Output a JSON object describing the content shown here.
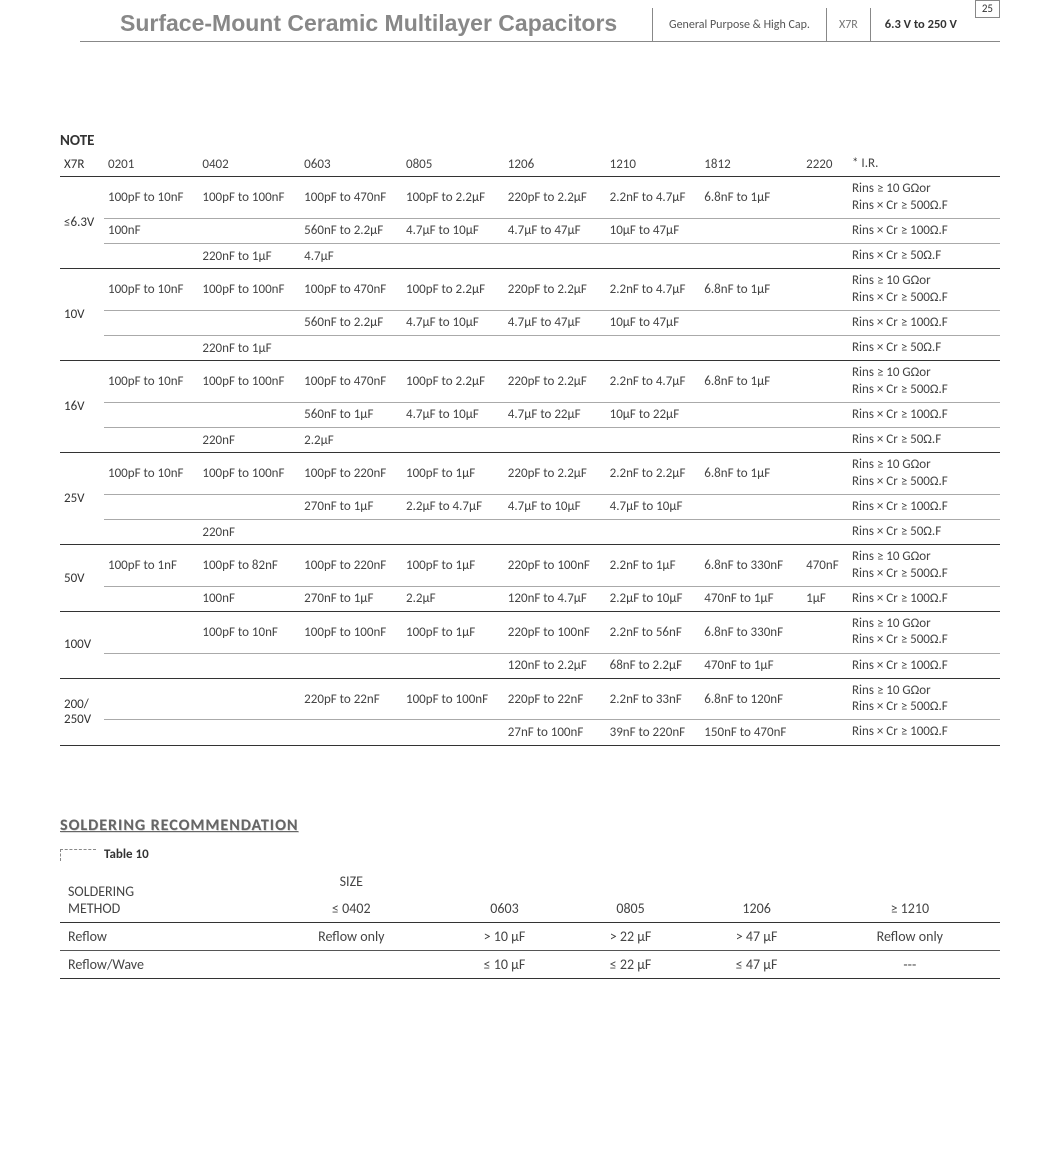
{
  "header": {
    "title": "Surface-Mount Ceramic Multilayer Capacitors",
    "subtitle": "General Purpose & High Cap.",
    "code": "X7R",
    "voltage": "6.3 V to 250 V",
    "page_number": "25"
  },
  "note": {
    "label": "NOTE",
    "corner": "X7R",
    "columns": [
      "0201",
      "0402",
      "0603",
      "0805",
      "1206",
      "1210",
      "1812",
      "2220",
      "* I.R."
    ],
    "groups": [
      {
        "voltage": "≤6.3V",
        "rows": [
          {
            "c": [
              "100pF to 10nF",
              "100pF to 100nF",
              "100pF to 470nF",
              "100pF to 2.2µF",
              "220pF to 2.2µF",
              "2.2nF to 4.7µF",
              "6.8nF to 1µF",
              ""
            ],
            "ir": "Rins ≥ 10 GΩor\nRins × Cr ≥ 500Ω.F",
            "line": "light"
          },
          {
            "c": [
              "100nF",
              "",
              "560nF to 2.2µF",
              "4.7µF to 10µF",
              "4.7µF to 47µF",
              "10µF to 47µF",
              "",
              ""
            ],
            "ir": "Rins × Cr ≥ 100Ω.F",
            "line": "light"
          },
          {
            "c": [
              "",
              "220nF to 1µF",
              "4.7µF",
              "",
              "",
              "",
              "",
              ""
            ],
            "ir": "Rins × Cr ≥ 50Ω.F",
            "line": "dark"
          }
        ]
      },
      {
        "voltage": "10V",
        "rows": [
          {
            "c": [
              "100pF to 10nF",
              "100pF to 100nF",
              "100pF to 470nF",
              "100pF to 2.2µF",
              "220pF to 2.2µF",
              "2.2nF to 4.7µF",
              "6.8nF to 1µF",
              ""
            ],
            "ir": "Rins ≥ 10 GΩor\nRins × Cr ≥ 500Ω.F",
            "line": "light"
          },
          {
            "c": [
              "",
              "",
              "560nF to 2.2µF",
              "4.7µF to 10µF",
              "4.7µF to 47µF",
              "10µF to 47µF",
              "",
              ""
            ],
            "ir": "Rins × Cr ≥ 100Ω.F",
            "line": "light"
          },
          {
            "c": [
              "",
              "220nF to 1µF",
              "",
              "",
              "",
              "",
              "",
              ""
            ],
            "ir": "Rins × Cr ≥ 50Ω.F",
            "line": "dark"
          }
        ]
      },
      {
        "voltage": "16V",
        "rows": [
          {
            "c": [
              "100pF to 10nF",
              "100pF to 100nF",
              "100pF to 470nF",
              "100pF to 2.2µF",
              "220pF to 2.2µF",
              "2.2nF to 4.7µF",
              "6.8nF to 1µF",
              ""
            ],
            "ir": "Rins ≥ 10 GΩor\nRins × Cr ≥ 500Ω.F",
            "line": "light"
          },
          {
            "c": [
              "",
              "",
              "560nF to 1µF",
              "4.7µF to 10µF",
              "4.7µF to 22µF",
              "10µF to 22µF",
              "",
              ""
            ],
            "ir": "Rins × Cr ≥ 100Ω.F",
            "line": "light"
          },
          {
            "c": [
              "",
              "220nF",
              "2.2µF",
              "",
              "",
              "",
              "",
              ""
            ],
            "ir": "Rins × Cr ≥ 50Ω.F",
            "line": "dark"
          }
        ]
      },
      {
        "voltage": "25V",
        "rows": [
          {
            "c": [
              "100pF to 10nF",
              "100pF to 100nF",
              "100pF to 220nF",
              "100pF to 1µF",
              "220pF to 2.2µF",
              "2.2nF to 2.2µF",
              "6.8nF to 1µF",
              ""
            ],
            "ir": "Rins ≥ 10 GΩor\nRins × Cr ≥ 500Ω.F",
            "line": "light"
          },
          {
            "c": [
              "",
              "",
              "270nF to 1µF",
              "2.2µF to 4.7µF",
              "4.7µF to 10µF",
              "4.7µF to 10µF",
              "",
              ""
            ],
            "ir": "Rins × Cr ≥ 100Ω.F",
            "line": "light"
          },
          {
            "c": [
              "",
              "220nF",
              "",
              "",
              "",
              "",
              "",
              ""
            ],
            "ir": "Rins × Cr ≥ 50Ω.F",
            "line": "dark"
          }
        ]
      },
      {
        "voltage": "50V",
        "rows": [
          {
            "c": [
              "100pF to 1nF",
              "100pF to 82nF",
              "100pF to 220nF",
              "100pF to 1µF",
              "220pF to 100nF",
              "2.2nF to 1µF",
              "6.8nF to 330nF",
              "470nF"
            ],
            "ir": "Rins ≥ 10 GΩor\nRins × Cr ≥ 500Ω.F",
            "line": "light"
          },
          {
            "c": [
              "",
              "100nF",
              "270nF to 1µF",
              "2.2µF",
              "120nF to 4.7µF",
              "2.2µF to 10µF",
              "470nF to 1µF",
              "1µF"
            ],
            "ir": "Rins × Cr ≥ 100Ω.F",
            "line": "dark"
          }
        ]
      },
      {
        "voltage": "100V",
        "rows": [
          {
            "c": [
              "",
              "100pF to 10nF",
              "100pF to 100nF",
              "100pF to 1µF",
              "220pF to 100nF",
              "2.2nF to 56nF",
              "6.8nF to 330nF",
              ""
            ],
            "ir": "Rins ≥ 10 GΩor\nRins × Cr ≥ 500Ω.F",
            "line": "light"
          },
          {
            "c": [
              "",
              "",
              "",
              "",
              "120nF to 2.2µF",
              "68nF to 2.2µF",
              "470nF to 1µF",
              ""
            ],
            "ir": "Rins × Cr ≥ 100Ω.F",
            "line": "dark"
          }
        ]
      },
      {
        "voltage": "200/\n250V",
        "rows": [
          {
            "c": [
              "",
              "",
              "220pF to 22nF",
              "100pF to 100nF",
              "220pF to 22nF",
              "2.2nF to 33nF",
              "6.8nF to 120nF",
              ""
            ],
            "ir": "Rins ≥ 10 GΩor\nRins × Cr ≥ 500Ω.F",
            "line": "light"
          },
          {
            "c": [
              "",
              "",
              "",
              "",
              "27nF to 100nF",
              "39nF to 220nF",
              "150nF to 470nF",
              ""
            ],
            "ir": "Rins × Cr ≥ 100Ω.F",
            "line": "dark"
          }
        ]
      }
    ]
  },
  "soldering": {
    "title": "SOLDERING RECOMMENDATION",
    "table_label": "Table 10",
    "method_label": "SOLDERING\nMETHOD",
    "size_label": "SIZE",
    "columns": [
      "≤ 0402",
      "0603",
      "0805",
      "1206",
      "≥ 1210"
    ],
    "rows": [
      {
        "method": "Reflow",
        "cells": [
          "Reflow only",
          "> 10 µF",
          "> 22 µF",
          "> 47 µF",
          "Reflow only"
        ]
      },
      {
        "method": "Reflow/Wave",
        "cells": [
          "",
          "≤ 10 µF",
          "≤ 22 µF",
          "≤ 47 µF",
          "---"
        ]
      }
    ]
  }
}
